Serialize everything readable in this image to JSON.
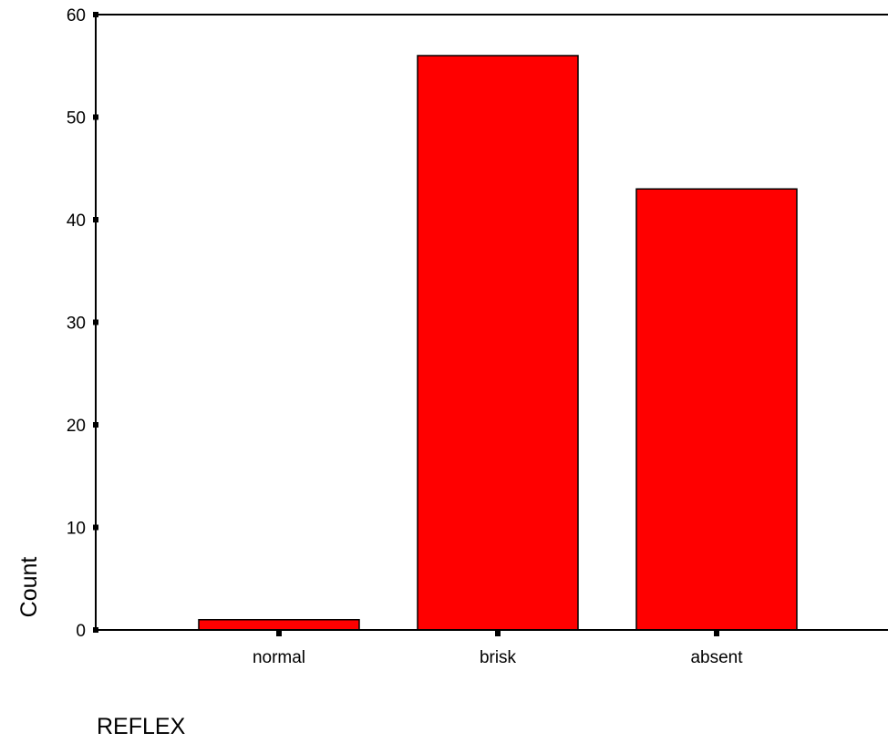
{
  "chart_data": {
    "type": "bar",
    "categories": [
      "normal",
      "brisk",
      "absent"
    ],
    "values": [
      1,
      56,
      43
    ],
    "xlabel": "REFLEX",
    "ylabel": "Count",
    "ylim": [
      0,
      60
    ],
    "yticks": [
      0,
      10,
      20,
      30,
      40,
      50,
      60
    ],
    "grid": false,
    "legend": "none",
    "bar_color": "#ff0000",
    "bar_stroke": "#000000"
  }
}
